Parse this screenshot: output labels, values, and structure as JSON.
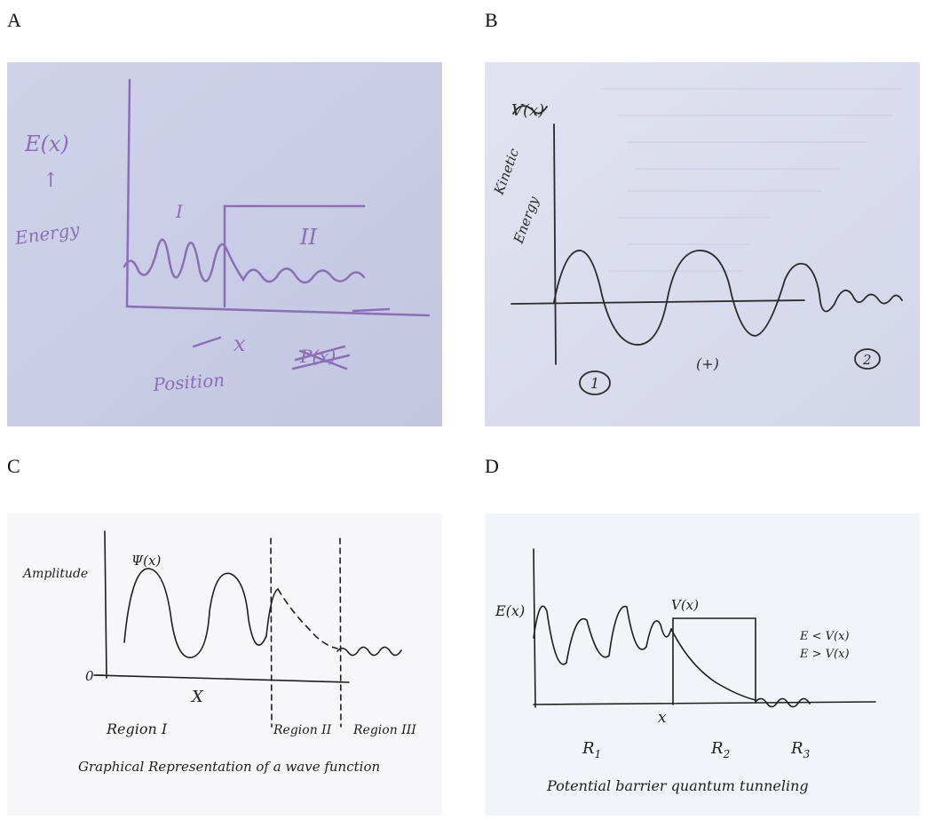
{
  "panels": {
    "A": {
      "label": "A",
      "y_label_top": "E(x)",
      "y_arrow": "↑",
      "y_label_word": "Energy",
      "region_1": "I",
      "region_2": "II",
      "x_symbol": "x",
      "x_word": "Position",
      "crossed_text": "P(x)"
    },
    "B": {
      "label": "B",
      "crossed_text": "V(x)",
      "y_label_1": "Kinetic",
      "y_label_2": "Energy",
      "region_1": "1",
      "region_mid": "(+)",
      "region_2": "2"
    },
    "C": {
      "label": "C",
      "y_label": "Amplitude",
      "psi": "Ψ(x)",
      "origin": "0",
      "x_symbol": "X",
      "region_1": "Region I",
      "region_2": "Region II",
      "region_3": "Region III",
      "caption": "Graphical Representation of a wave function"
    },
    "D": {
      "label": "D",
      "y_label": "E(x)",
      "vx": "V(x)",
      "cond_1": "E < V(x)",
      "cond_2": "E > V(x)",
      "x_symbol": "x",
      "r1": "R",
      "r1_sub": "1",
      "r2": "R",
      "r2_sub": "2",
      "r3": "R",
      "r3_sub": "3",
      "caption": "Potential barrier quantum tunneling"
    }
  }
}
